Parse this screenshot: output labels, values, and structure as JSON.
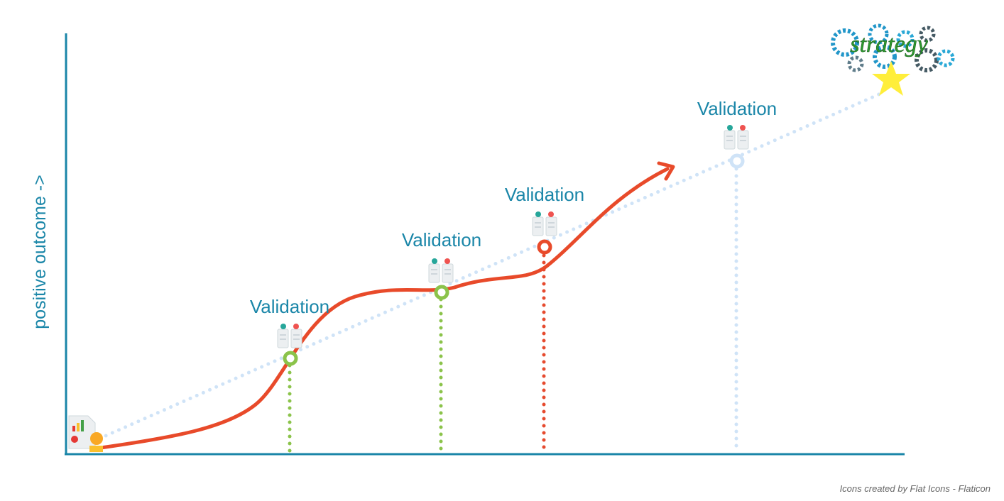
{
  "axis": {
    "y_label": "positive outcome ->"
  },
  "milestones": [
    {
      "label": "Validation"
    },
    {
      "label": "Validation"
    },
    {
      "label": "Validation"
    },
    {
      "label": "Validation"
    }
  ],
  "logo": {
    "text": "strategy"
  },
  "credit": "Icons created by Flat Icons - Flaticon"
}
